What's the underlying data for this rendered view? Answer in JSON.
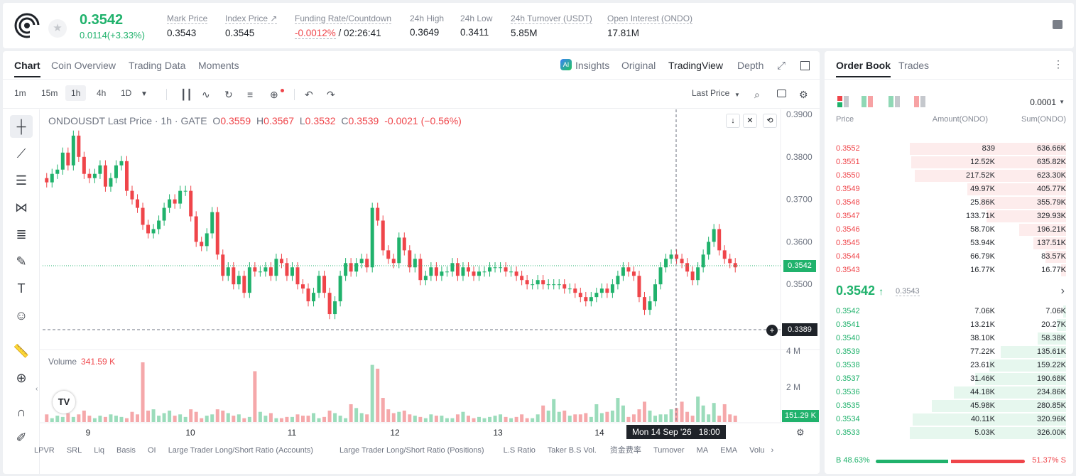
{
  "header": {
    "price": "0.3542",
    "change": "0.0114(+3.33%)",
    "stats": [
      {
        "label": "Mark Price",
        "value": "0.3543"
      },
      {
        "label": "Index Price ↗",
        "value": "0.3545"
      },
      {
        "label": "Funding Rate/Countdown",
        "value": "-0.0012%",
        "value2": " / 02:26:41"
      },
      {
        "label": "24h High",
        "value": "0.3649"
      },
      {
        "label": "24h Low",
        "value": "0.3411"
      },
      {
        "label": "24h Turnover (USDT)",
        "value": "5.85M"
      },
      {
        "label": "Open Interest (ONDO)",
        "value": "17.81M"
      }
    ]
  },
  "chart_tabs": {
    "chart": "Chart",
    "coin": "Coin Overview",
    "trading": "Trading Data",
    "moments": "Moments",
    "insights": "Insights",
    "original": "Original",
    "tv": "TradingView",
    "depth": "Depth"
  },
  "toolbar": {
    "tf": [
      "1m",
      "15m",
      "1h",
      "4h",
      "1D"
    ],
    "price_type": "Last Price"
  },
  "legend": {
    "symbol": "ONDOUSDT Last Price · 1h · GATE",
    "o": "O",
    "ov": "0.3559",
    "h": "H",
    "hv": "0.3567",
    "l": "L",
    "lv": "0.3532",
    "c": "C",
    "cv": "0.3539",
    "chg": "-0.0021 (−0.56%)"
  },
  "volume": {
    "label": "Volume",
    "value": "341.59 K",
    "current": "151.29 K"
  },
  "crosshair": {
    "time": "Mon 14 Sep '26",
    "hour": "18:00",
    "price": "0.3389"
  },
  "bottombar": [
    "LPVR",
    "SRL",
    "Liq",
    "Basis",
    "OI",
    "Large Trader Long/Short Ratio (Accounts)",
    "Large Trader Long/Short Ratio (Positions)",
    "L.S Ratio",
    "Taker B.S Vol.",
    "资金费率",
    "Turnover",
    "MA",
    "EMA",
    "Volu"
  ],
  "chart_data": {
    "type": "candlestick",
    "title": "ONDOUSDT Last Price · 1h · GATE",
    "x_ticks": [
      "9",
      "10",
      "11",
      "12",
      "13",
      "14"
    ],
    "y_ticks": [
      "0.3900",
      "0.3800",
      "0.3700",
      "0.3600",
      "0.3500"
    ],
    "volume_ticks": [
      "4 M",
      "2 M"
    ],
    "last_price": "0.3542",
    "ylim": [
      0.34,
      0.39
    ],
    "close_series": [
      0.374,
      0.376,
      0.377,
      0.381,
      0.378,
      0.385,
      0.38,
      0.376,
      0.375,
      0.376,
      0.378,
      0.373,
      0.375,
      0.378,
      0.379,
      0.372,
      0.37,
      0.368,
      0.364,
      0.362,
      0.363,
      0.365,
      0.368,
      0.37,
      0.369,
      0.372,
      0.372,
      0.366,
      0.36,
      0.359,
      0.362,
      0.367,
      0.357,
      0.352,
      0.354,
      0.35,
      0.352,
      0.348,
      0.354,
      0.353,
      0.353,
      0.354,
      0.352,
      0.356,
      0.355,
      0.352,
      0.354,
      0.35,
      0.349,
      0.346,
      0.348,
      0.352,
      0.348,
      0.343,
      0.346,
      0.352,
      0.355,
      0.353,
      0.355,
      0.356,
      0.354,
      0.368,
      0.365,
      0.358,
      0.356,
      0.355,
      0.361,
      0.358,
      0.354,
      0.356,
      0.351,
      0.352,
      0.354,
      0.352,
      0.353,
      0.353,
      0.355,
      0.352,
      0.354,
      0.353,
      0.352,
      0.353,
      0.353,
      0.354,
      0.354,
      0.354,
      0.353,
      0.353,
      0.352,
      0.351,
      0.35,
      0.35,
      0.351,
      0.35,
      0.35,
      0.35,
      0.35,
      0.349,
      0.349,
      0.348,
      0.347,
      0.346,
      0.347,
      0.348,
      0.349,
      0.348,
      0.35,
      0.352,
      0.354,
      0.353,
      0.352,
      0.347,
      0.344,
      0.346,
      0.35,
      0.354,
      0.356,
      0.357,
      0.356,
      0.355,
      0.353,
      0.351,
      0.354,
      0.357,
      0.36,
      0.363,
      0.358,
      0.356,
      0.355,
      0.354
    ],
    "volume_series": [
      0.6,
      0.3,
      0.5,
      0.4,
      0.7,
      0.4,
      0.6,
      0.9,
      0.5,
      0.3,
      0.5,
      0.4,
      0.6,
      0.5,
      0.4,
      0.3,
      0.8,
      0.6,
      4.7,
      0.9,
      1.0,
      0.5,
      0.7,
      0.9,
      0.5,
      0.6,
      0.4,
      1.0,
      0.8,
      0.3,
      0.5,
      0.6,
      1.0,
      0.9,
      0.7,
      0.5,
      0.6,
      0.3,
      0.4,
      4.0,
      0.8,
      0.5,
      0.7,
      0.3,
      0.3,
      0.4,
      0.4,
      0.6,
      0.5,
      0.5,
      0.7,
      0.3,
      0.4,
      0.9,
      0.7,
      0.5,
      0.3,
      1.4,
      1.1,
      0.7,
      0.6,
      4.5,
      4.2,
      1.9,
      1.0,
      0.7,
      0.8,
      0.9,
      0.6,
      0.5,
      0.4,
      0.3,
      0.6,
      0.5,
      0.5,
      0.3,
      0.3,
      0.6,
      0.8,
      0.5,
      0.3,
      0.4,
      0.3,
      0.4,
      0.5,
      0.6,
      0.4,
      0.3,
      0.4,
      0.6,
      0.3,
      0.3,
      0.6,
      1.3,
      0.9,
      1.8,
      0.8,
      0.9,
      0.5,
      0.6,
      0.6,
      0.7,
      0.4,
      1.4,
      0.7,
      0.8,
      0.9,
      1.9,
      1.3,
      0.4,
      0.6,
      1.0,
      1.6,
      0.9,
      0.5,
      0.6,
      0.6,
      1.0,
      1.1,
      1.6,
      0.8,
      0.5,
      2.0,
      1.3,
      0.6,
      1.5,
      0.5,
      1.4,
      0.6,
      0.5,
      0.3,
      0.2
    ]
  },
  "orderbook": {
    "tab_book": "Order Book",
    "tab_trades": "Trades",
    "precision": "0.0001",
    "cols": {
      "price": "Price",
      "amount": "Amount(ONDO)",
      "sum": "Sum(ONDO)"
    },
    "asks": [
      [
        "0.3552",
        "839",
        "636.66K",
        1.0
      ],
      [
        "0.3551",
        "12.52K",
        "635.82K",
        0.99
      ],
      [
        "0.3550",
        "217.52K",
        "623.30K",
        0.97
      ],
      [
        "0.3549",
        "49.97K",
        "405.77K",
        0.63
      ],
      [
        "0.3548",
        "25.86K",
        "355.79K",
        0.55
      ],
      [
        "0.3547",
        "133.71K",
        "329.93K",
        0.51
      ],
      [
        "0.3546",
        "58.70K",
        "196.21K",
        0.3
      ],
      [
        "0.3545",
        "53.94K",
        "137.51K",
        0.21
      ],
      [
        "0.3544",
        "66.79K",
        "83.57K",
        0.13
      ],
      [
        "0.3543",
        "16.77K",
        "16.77K",
        0.03
      ]
    ],
    "mid": "0.3542",
    "mark": "0.3543",
    "bids": [
      [
        "0.3542",
        "7.06K",
        "7.06K",
        0.02
      ],
      [
        "0.3541",
        "13.21K",
        "20.27K",
        0.06
      ],
      [
        "0.3540",
        "38.10K",
        "58.38K",
        0.18
      ],
      [
        "0.3539",
        "77.22K",
        "135.61K",
        0.42
      ],
      [
        "0.3538",
        "23.61K",
        "159.22K",
        0.49
      ],
      [
        "0.3537",
        "31.46K",
        "190.68K",
        0.58
      ],
      [
        "0.3536",
        "44.18K",
        "234.86K",
        0.72
      ],
      [
        "0.3535",
        "45.98K",
        "280.85K",
        0.86
      ],
      [
        "0.3534",
        "40.11K",
        "320.96K",
        0.98
      ],
      [
        "0.3533",
        "5.03K",
        "326.00K",
        1.0
      ]
    ],
    "buy_ratio": "48.63%",
    "sell_ratio": "51.37%",
    "buy_label": "B",
    "sell_label": "S",
    "colors": {
      "up": "#20b26c",
      "down": "#ef454a"
    }
  }
}
